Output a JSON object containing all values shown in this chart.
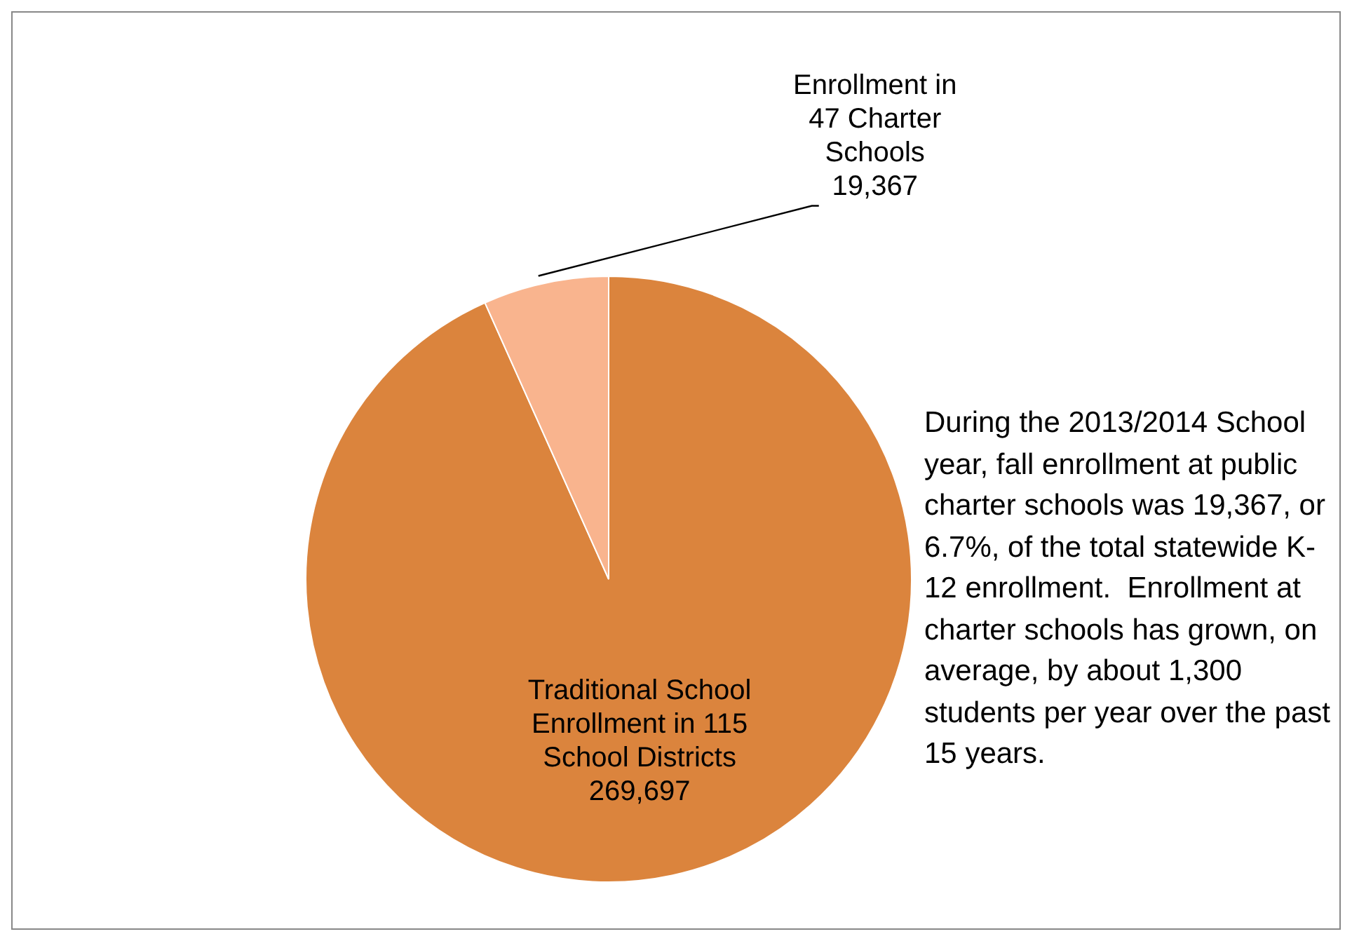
{
  "chart_data": {
    "type": "pie",
    "categories": [
      "Traditional School Enrollment in 115 School Districts",
      "Enrollment in 47 Charter Schools"
    ],
    "values": [
      269697,
      19367
    ],
    "colors": [
      "#db843d",
      "#f9b48e"
    ],
    "value_labels": [
      "269,697",
      "19,367"
    ],
    "annotations": [
      "During the 2013/2014 School year, fall enrollment at public charter schools was 19,367, or 6.7%, of the total statewide K-12 enrollment.  Enrollment at charter schools has grown, on average, by about 1,300 students per year over the past 15 years."
    ]
  }
}
